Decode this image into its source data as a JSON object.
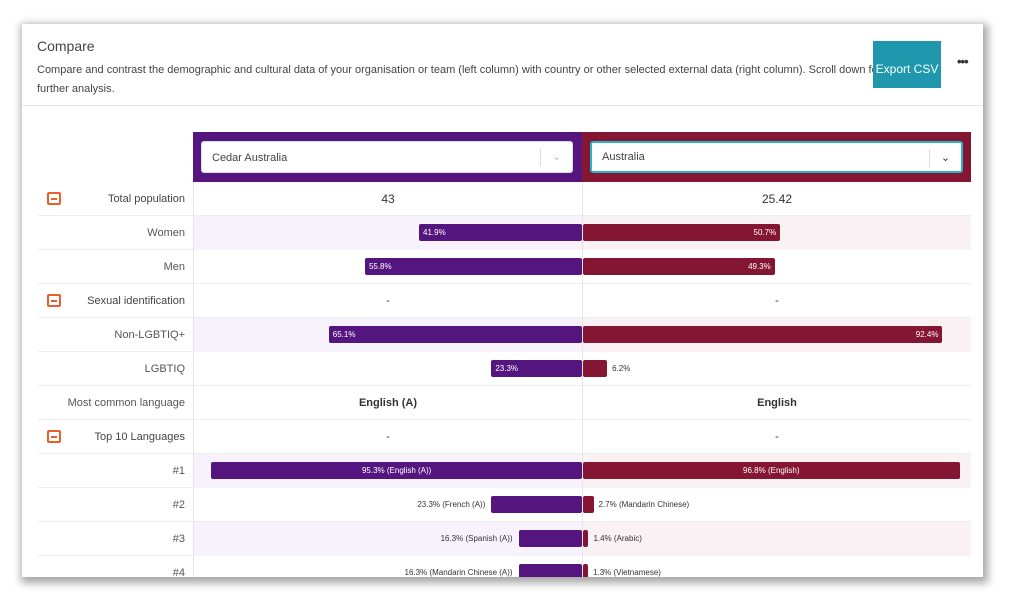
{
  "header": {
    "title": "Compare",
    "description": "Compare and contrast the demographic and cultural data of your organisation or team (left column) with country or other selected external data (right column). Scroll down for further analysis.",
    "export_label": "Export CSV",
    "more_icon": "ellipsis-icon"
  },
  "colors": {
    "left": "#54167e",
    "right": "#841533",
    "accent": "#1f97ad",
    "toggle": "#e8602c"
  },
  "selectors": {
    "left": "Cedar Australia",
    "right": "Australia"
  },
  "rows": [
    {
      "label": "Total population",
      "section": true,
      "left": "43",
      "right": "25.42"
    },
    {
      "label": "Women",
      "left_pct": 41.9,
      "right_pct": 50.7,
      "left_text": "41.9%",
      "right_text": "50.7%"
    },
    {
      "label": "Men",
      "left_pct": 55.8,
      "right_pct": 49.3,
      "left_text": "55.8%",
      "right_text": "49.3%"
    },
    {
      "label": "Sexual identification",
      "section": true,
      "left": "-",
      "right": "-"
    },
    {
      "label": "Non-LGBTIQ+",
      "left_pct": 65.1,
      "right_pct": 92.4,
      "left_text": "65.1%",
      "right_text": "92.4%"
    },
    {
      "label": "LGBTIQ",
      "left_pct": 23.3,
      "right_pct": 6.2,
      "left_text": "23.3%",
      "right_text": "6.2%"
    },
    {
      "label": "Most common language",
      "left": "English (A)",
      "right": "English",
      "bold": true
    },
    {
      "label": "Top 10 Languages",
      "section": true,
      "left": "-",
      "right": "-"
    },
    {
      "label": "#1",
      "left_pct": 95.3,
      "right_pct": 96.8,
      "left_text": "95.3% (English (A))",
      "right_text": "96.8% (English)",
      "center": true
    },
    {
      "label": "#2",
      "left_pct": 23.3,
      "right_pct": 2.7,
      "left_text": "23.3% (French (A))",
      "right_text": "2.7% (Mandarin Chinese)",
      "center": true
    },
    {
      "label": "#3",
      "left_pct": 16.3,
      "right_pct": 1.4,
      "left_text": "16.3% (Spanish (A))",
      "right_text": "1.4% (Arabic)",
      "center": true
    },
    {
      "label": "#4",
      "left_pct": 16.3,
      "right_pct": 1.3,
      "left_text": "16.3% (Mandarin Chinese (A))",
      "right_text": "1.3% (Vietnamese)",
      "center": true
    }
  ]
}
